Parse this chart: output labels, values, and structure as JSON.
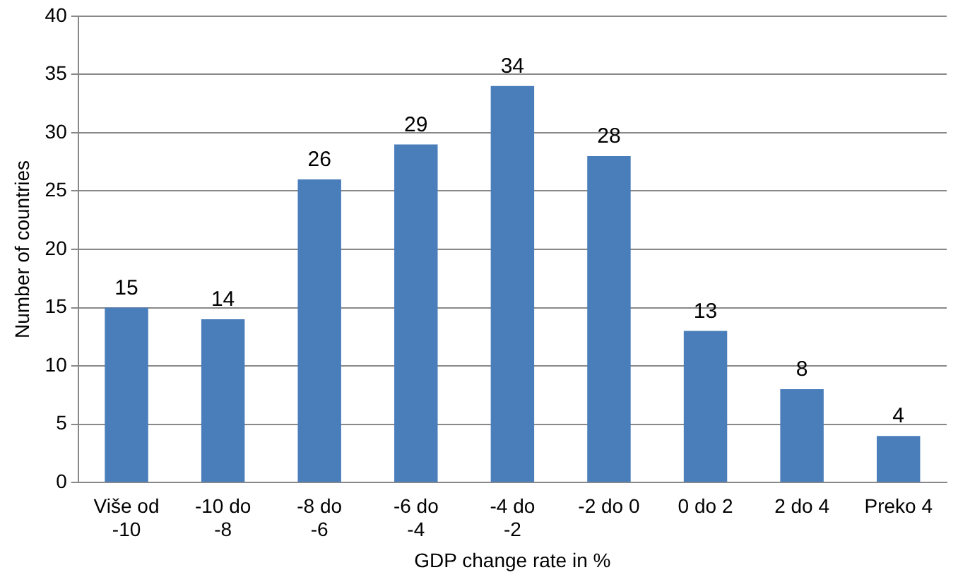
{
  "chart_data": {
    "type": "bar",
    "xlabel": "GDP change rate in %",
    "ylabel": "Number of countries",
    "categories": [
      "Više od -10",
      "-10 do -8",
      "-8 do -6",
      "-6 do -4",
      "-4 do -2",
      "-2 do 0",
      "0 do 2",
      "2 do 4",
      "Preko 4"
    ],
    "values": [
      15,
      14,
      26,
      29,
      34,
      28,
      13,
      8,
      4
    ],
    "color": "#4a7ebb",
    "ylim": [
      0,
      40
    ],
    "yticks": [
      0,
      5,
      10,
      15,
      20,
      25,
      30,
      35,
      40
    ],
    "grid": "y",
    "data_labels": true,
    "legend": false
  }
}
